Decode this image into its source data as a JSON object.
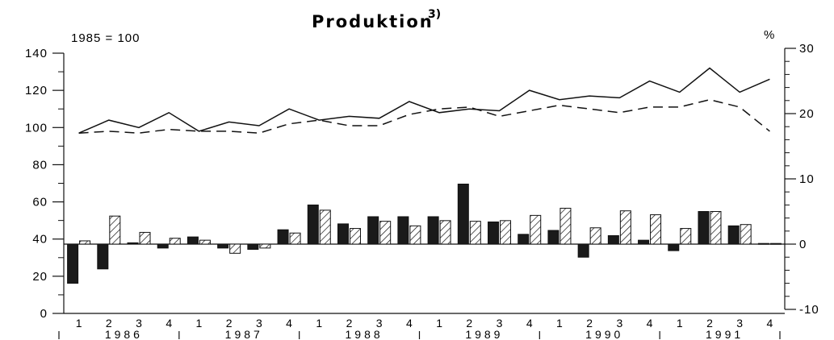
{
  "chart_data": {
    "type": "bar+line",
    "title": "Produktion",
    "title_footnote": "3)",
    "left_axis": {
      "label": "1985 = 100",
      "range": [
        0,
        140
      ],
      "ticks": [
        "0",
        "20",
        "40",
        "60",
        "80",
        "100",
        "120",
        "140"
      ]
    },
    "right_axis": {
      "label": "%",
      "range": [
        -10,
        30
      ],
      "ticks": [
        "-10",
        "0",
        "10",
        "20",
        "30"
      ]
    },
    "quarters": [
      "1",
      "2",
      "3",
      "4",
      "1",
      "2",
      "3",
      "4",
      "1",
      "2",
      "3",
      "4",
      "1",
      "2",
      "3",
      "4",
      "1",
      "2",
      "3",
      "4",
      "1",
      "2",
      "3",
      "4"
    ],
    "years": [
      "1986",
      "1987",
      "1988",
      "1989",
      "1990",
      "1991"
    ],
    "lines": [
      {
        "style": "solid",
        "axis": "left",
        "values": [
          97,
          104,
          100,
          108,
          98,
          103,
          101,
          110,
          104,
          106,
          105,
          114,
          108,
          110,
          109,
          120,
          115,
          117,
          116,
          125,
          119,
          132,
          119,
          126
        ]
      },
      {
        "style": "dashed",
        "axis": "left",
        "values": [
          97,
          98,
          97,
          99,
          98,
          98,
          97,
          102,
          104,
          101,
          101,
          107,
          110,
          111,
          106,
          109,
          112,
          110,
          108,
          111,
          111,
          115,
          111,
          98
        ]
      }
    ],
    "bars": [
      {
        "style": "solid",
        "axis": "right",
        "values": [
          -6.0,
          -3.8,
          0.2,
          -0.6,
          1.1,
          -0.6,
          -0.8,
          2.2,
          6.0,
          3.1,
          4.2,
          4.2,
          4.2,
          9.2,
          3.4,
          1.5,
          2.1,
          -2.0,
          1.3,
          0.6,
          -1.0,
          5.0,
          2.8,
          0.1
        ]
      },
      {
        "style": "hatched",
        "axis": "right",
        "values": [
          0.5,
          4.3,
          1.8,
          0.9,
          0.6,
          -1.4,
          -0.6,
          1.7,
          5.2,
          2.4,
          3.5,
          2.8,
          3.6,
          3.5,
          3.6,
          4.4,
          5.5,
          2.5,
          5.1,
          4.5,
          2.4,
          5.0,
          3.0,
          0.1
        ]
      }
    ]
  }
}
